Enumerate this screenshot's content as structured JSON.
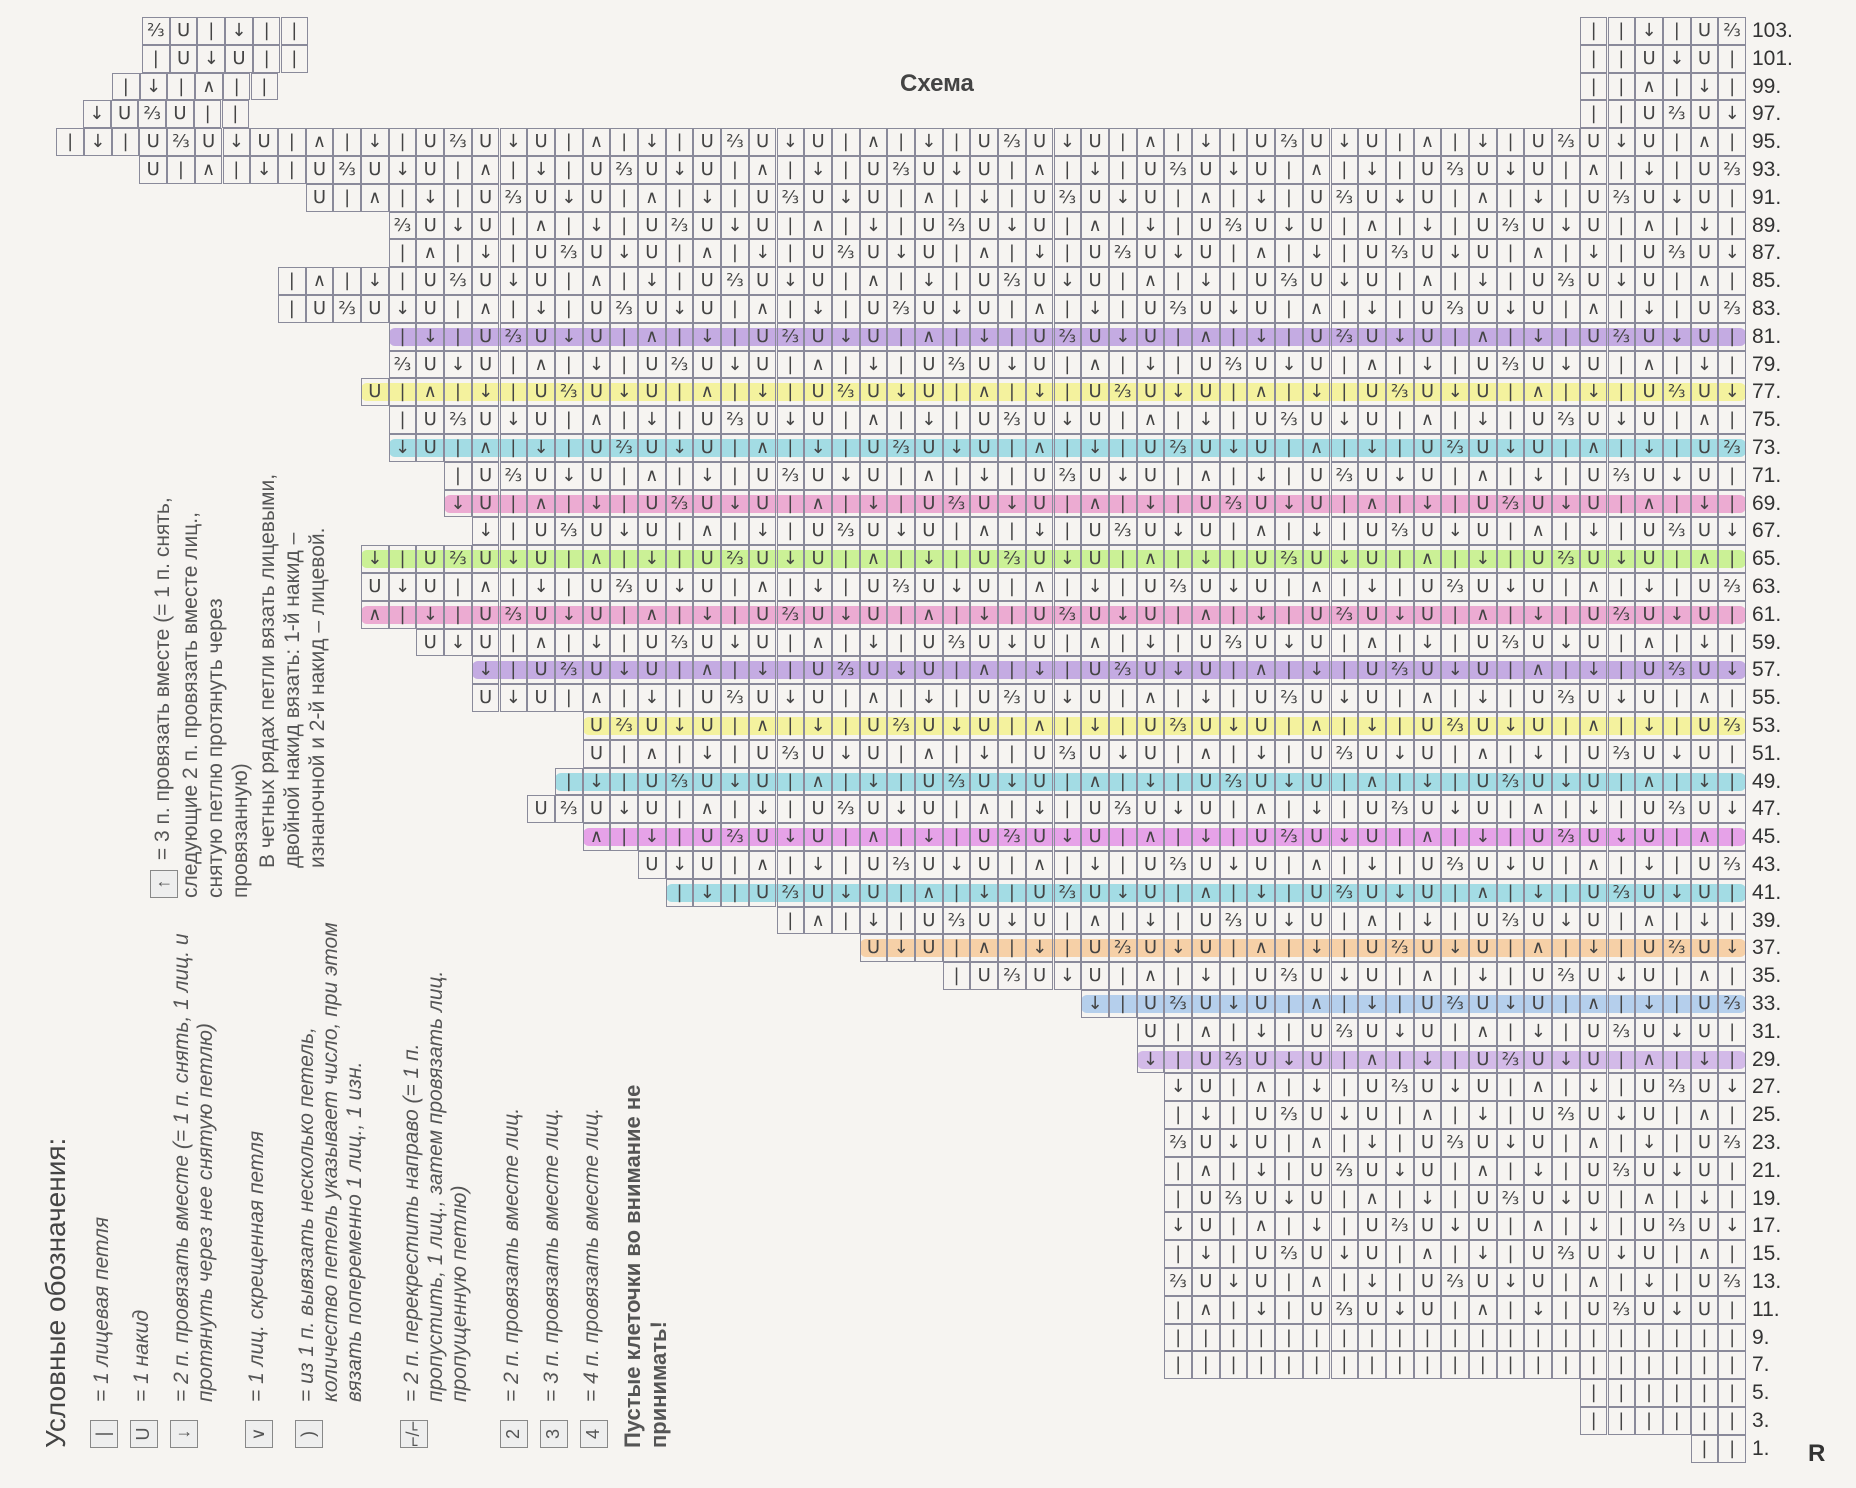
{
  "title": "Схема",
  "row_numbers": [
    "103.",
    "101.",
    "99.",
    "97.",
    "95.",
    "93.",
    "91.",
    "89.",
    "87.",
    "85.",
    "83.",
    "81.",
    "79.",
    "77.",
    "75.",
    "73.",
    "71.",
    "69.",
    "67.",
    "65.",
    "63.",
    "61.",
    "59.",
    "57.",
    "55.",
    "53.",
    "51.",
    "49.",
    "47.",
    "45.",
    "43.",
    "41.",
    "39.",
    "37.",
    "35.",
    "33.",
    "31.",
    "29.",
    "27.",
    "25.",
    "23.",
    "21.",
    "19.",
    "17.",
    "15.",
    "13.",
    "11.",
    "9.",
    "7.",
    "5.",
    "3.",
    "1."
  ],
  "side_mark": "R",
  "cell_symbols": [
    "U",
    "|",
    "↓",
    "⅔",
    "U",
    "|",
    "U",
    "↓",
    "∧",
    "|"
  ],
  "highlight_rows": [
    {
      "row": 81,
      "color": "#9b6fd6"
    },
    {
      "row": 77,
      "color": "#f3f05a"
    },
    {
      "row": 73,
      "color": "#5ec8d8"
    },
    {
      "row": 69,
      "color": "#e36fb8"
    },
    {
      "row": 65,
      "color": "#a8ef4a"
    },
    {
      "row": 61,
      "color": "#e36fb8"
    },
    {
      "row": 57,
      "color": "#9b6fd6"
    },
    {
      "row": 53,
      "color": "#f3f05a"
    },
    {
      "row": 49,
      "color": "#5ec8d8"
    },
    {
      "row": 45,
      "color": "#d85fe0"
    },
    {
      "row": 41,
      "color": "#5ec8d8"
    },
    {
      "row": 37,
      "color": "#f5b36a"
    },
    {
      "row": 33,
      "color": "#7fb0e8"
    },
    {
      "row": 29,
      "color": "#b78be0"
    }
  ],
  "legend": {
    "title": "Условные обозначения:",
    "items": [
      {
        "symbol": "|",
        "text": "= 1 лицевая петля"
      },
      {
        "symbol": "U",
        "text": "= 1 накид"
      },
      {
        "symbol": "↓",
        "text": "= 2 п. провязать вместе (= 1 п. снять, 1 лиц. и протянуть через нее снятую петлю)"
      },
      {
        "symbol": "∨",
        "text": "= 1 лиц. скрещенная петля"
      },
      {
        "symbol": ")",
        "text": "= из 1 п. вывязать несколько петель, количество петель указывает число, при этом вязать попеременно 1 лиц., 1 изн."
      },
      {
        "symbol": "⌐/⌐",
        "text": "= 2 п. перекрестить направо (= 1 п. пропустить, 1 лиц., затем провязать лиц. пропущенную петлю)"
      },
      {
        "symbol": "2",
        "text": "= 2 п. провязать вместе лиц."
      },
      {
        "symbol": "3",
        "text": "= 3 п. провязать вместе лиц."
      },
      {
        "symbol": "4",
        "text": "= 4 п. провязать вместе лиц."
      }
    ],
    "note": "Пустые клеточки во внимание не принимать!",
    "extra_symbol": "↑",
    "extra_text": "= 3 п. провязать вместе (= 1 п. снять, следующие 2 п. провязать вместе лиц., снятую петлю протянуть через провязанную)",
    "even_rows_text": "В четных рядах петли вязать лицевыми, двойной накид вязать: 1-й накид – изнаночной и 2-й накид – лицевой."
  }
}
